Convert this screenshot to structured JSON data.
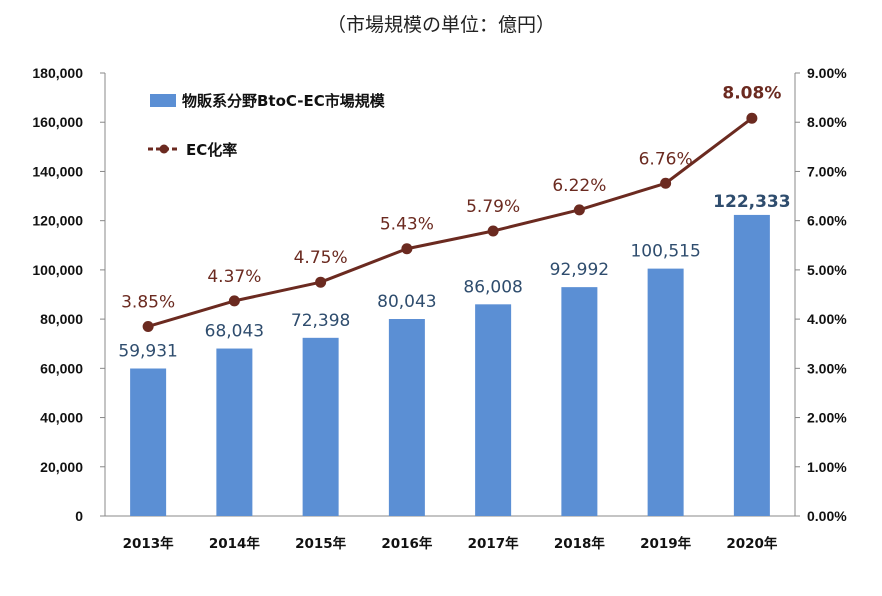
{
  "caption": "（市場規模の単位：億円）",
  "chart_data": {
    "type": "bar",
    "categories": [
      "2013年",
      "2014年",
      "2015年",
      "2016年",
      "2017年",
      "2018年",
      "2019年",
      "2020年"
    ],
    "series": [
      {
        "name": "物販系分野BtoC-EC市場規模",
        "type": "bar",
        "axis": "left",
        "values": [
          59931,
          68043,
          72398,
          80043,
          86008,
          92992,
          100515,
          122333
        ],
        "labels": [
          "59,931",
          "68,043",
          "72,398",
          "80,043",
          "86,008",
          "92,992",
          "100,515",
          "122,333"
        ],
        "color": "#5b8fd4"
      },
      {
        "name": "EC化率",
        "type": "line",
        "axis": "right",
        "values": [
          3.85,
          4.37,
          4.75,
          5.43,
          5.79,
          6.22,
          6.76,
          8.08
        ],
        "labels": [
          "3.85%",
          "4.37%",
          "4.75%",
          "5.43%",
          "5.79%",
          "6.22%",
          "6.76%",
          "8.08%"
        ],
        "color": "#6b2a20"
      }
    ],
    "ylim": [
      0,
      180000
    ],
    "y_ticks": [
      "0",
      "20,000",
      "40,000",
      "60,000",
      "80,000",
      "100,000",
      "120,000",
      "140,000",
      "160,000",
      "180,000"
    ],
    "y2lim": [
      0,
      9
    ],
    "y2_ticks": [
      "0.00%",
      "1.00%",
      "2.00%",
      "3.00%",
      "4.00%",
      "5.00%",
      "6.00%",
      "7.00%",
      "8.00%",
      "9.00%"
    ],
    "grid": false,
    "legend_position": "top-left",
    "highlight_last": true
  }
}
